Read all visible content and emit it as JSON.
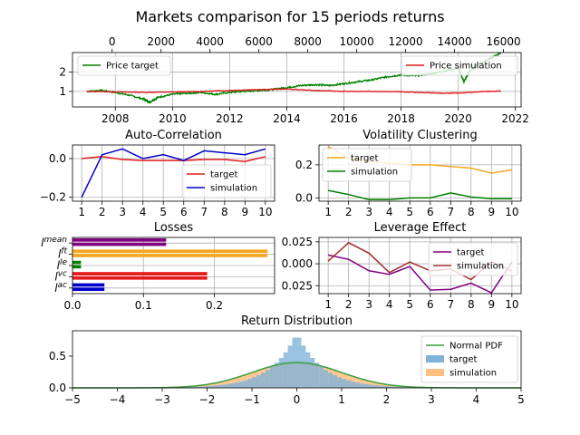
{
  "title": "Markets comparison for 15 periods returns",
  "colors": {
    "target_green": "#008000",
    "simulation_red": "#e41a1c",
    "simulation_blue": "#0000cc",
    "orange": "#f5a623",
    "purple": "#800080",
    "brown": "#a52a2a",
    "hist_target": "#7fb2d8",
    "hist_sim": "#ffbf80",
    "pdf_green": "#3a9e3a"
  },
  "chart_data": [
    {
      "id": "price",
      "type": "line",
      "title": "",
      "x_bottom_ticks": [
        "2008",
        "2010",
        "2012",
        "2014",
        "2016",
        "2018",
        "2020",
        "2022"
      ],
      "x_top_ticks": [
        "0",
        "2000",
        "4000",
        "6000",
        "8000",
        "10000",
        "12000",
        "14000",
        "16000"
      ],
      "y_ticks": [
        "1",
        "2"
      ],
      "xlim": [
        2006.5,
        2022.2
      ],
      "ylim": [
        0.2,
        3.0
      ],
      "legend_left": "Price target",
      "legend_right": "Price simulation",
      "series": [
        {
          "name": "Price target",
          "color": "#008000",
          "x": [
            2007.0,
            2007.5,
            2008.0,
            2008.5,
            2009.0,
            2009.2,
            2009.5,
            2010.0,
            2010.5,
            2011.0,
            2011.5,
            2012.0,
            2012.5,
            2013.0,
            2013.5,
            2014.0,
            2014.5,
            2015.0,
            2015.5,
            2016.0,
            2016.5,
            2017.0,
            2017.5,
            2018.0,
            2018.5,
            2019.0,
            2019.5,
            2020.0,
            2020.2,
            2020.4,
            2020.7,
            2021.0,
            2021.5
          ],
          "y": [
            1.0,
            1.05,
            0.95,
            0.8,
            0.6,
            0.45,
            0.7,
            0.85,
            0.9,
            0.95,
            0.85,
            0.95,
            1.0,
            1.05,
            1.1,
            1.2,
            1.3,
            1.35,
            1.3,
            1.4,
            1.5,
            1.6,
            1.75,
            1.85,
            1.8,
            1.9,
            2.05,
            2.2,
            1.5,
            2.05,
            2.4,
            2.6,
            3.0
          ]
        },
        {
          "name": "Price simulation",
          "color": "#e41a1c",
          "x": [
            2007.0,
            2008.0,
            2009.0,
            2010.0,
            2011.0,
            2012.0,
            2013.0,
            2014.0,
            2015.0,
            2016.0,
            2017.0,
            2018.0,
            2019.0,
            2019.5,
            2020.0,
            2021.0,
            2021.5
          ],
          "y": [
            1.0,
            0.98,
            0.95,
            0.97,
            1.0,
            1.05,
            1.1,
            1.12,
            1.05,
            1.0,
            1.0,
            0.98,
            0.93,
            0.9,
            0.92,
            1.0,
            1.02
          ]
        }
      ]
    },
    {
      "id": "autocorr",
      "type": "line",
      "title": "Auto-Correlation",
      "categories": [
        1,
        2,
        3,
        4,
        5,
        6,
        7,
        8,
        9,
        10
      ],
      "y_ticks": [
        "−0.2",
        "0.0"
      ],
      "ylim": [
        -0.22,
        0.07
      ],
      "series": [
        {
          "name": "target",
          "color": "#e41a1c",
          "values": [
            0.0,
            0.01,
            -0.005,
            -0.01,
            -0.01,
            -0.01,
            -0.005,
            -0.005,
            -0.015,
            0.01
          ]
        },
        {
          "name": "simulation",
          "color": "#0000cc",
          "values": [
            -0.2,
            0.02,
            0.05,
            0.0,
            0.02,
            -0.01,
            0.04,
            0.03,
            0.02,
            0.05
          ]
        }
      ]
    },
    {
      "id": "volatility",
      "type": "line",
      "title": "Volatility Clustering",
      "categories": [
        1,
        2,
        3,
        4,
        5,
        6,
        7,
        8,
        9,
        10
      ],
      "y_ticks": [
        "0.0",
        "0.2"
      ],
      "ylim": [
        -0.02,
        0.32
      ],
      "series": [
        {
          "name": "target",
          "color": "#f5a623",
          "values": [
            0.31,
            0.24,
            0.22,
            0.21,
            0.2,
            0.2,
            0.19,
            0.18,
            0.15,
            0.17
          ]
        },
        {
          "name": "simulation",
          "color": "#008000",
          "values": [
            0.045,
            0.02,
            -0.01,
            -0.01,
            0.0,
            0.0,
            0.03,
            0.005,
            -0.005,
            -0.005
          ]
        }
      ]
    },
    {
      "id": "losses",
      "type": "bar",
      "title": "Losses",
      "x_ticks": [
        "0.0",
        "0.1",
        "0.2"
      ],
      "xlim": [
        0,
        0.285
      ],
      "categories": [
        "L^mean",
        "L^ft",
        "L^le",
        "L^vc",
        "L^ac"
      ],
      "category_labels": [
        {
          "base": "l",
          "sup": "mean"
        },
        {
          "base": "l",
          "sup": "ft"
        },
        {
          "base": "l",
          "sup": "le"
        },
        {
          "base": "l",
          "sup": "vc"
        },
        {
          "base": "l",
          "sup": "ac"
        }
      ],
      "series": [
        {
          "name": "target",
          "values": [
            0.132,
            0.275,
            0.012,
            0.19,
            0.045
          ],
          "colors": [
            "#800080",
            "#f5a623",
            "#008000",
            "#e41a1c",
            "#0000cc"
          ]
        },
        {
          "name": "simulation",
          "values": [
            0.132,
            0.275,
            0.012,
            0.19,
            0.045
          ],
          "colors": [
            "#800080",
            "#f5a623",
            "#008000",
            "#e41a1c",
            "#0000cc"
          ]
        }
      ]
    },
    {
      "id": "leverage",
      "type": "line",
      "title": "Leverage Effect",
      "categories": [
        1,
        2,
        3,
        4,
        5,
        6,
        7,
        8,
        9,
        10
      ],
      "y_ticks": [
        "0.025",
        "0.000",
        "0.025"
      ],
      "ylim": [
        -0.034,
        0.03
      ],
      "series": [
        {
          "name": "target",
          "color": "#800080",
          "values": [
            0.01,
            0.005,
            -0.008,
            -0.012,
            -0.003,
            -0.03,
            -0.029,
            -0.022,
            -0.033,
            0.002
          ]
        },
        {
          "name": "simulation",
          "color": "#a52a2a",
          "values": [
            0.003,
            0.024,
            0.012,
            -0.01,
            0.002,
            -0.008,
            -0.006,
            -0.018,
            0.002,
            -0.008
          ]
        }
      ]
    },
    {
      "id": "distribution",
      "type": "bar",
      "title": "Return Distribution",
      "x_ticks": [
        "−5",
        "−4",
        "−3",
        "−2",
        "−1",
        "0",
        "1",
        "2",
        "3",
        "4",
        "5"
      ],
      "xlim": [
        -5,
        5
      ],
      "y_ticks": [
        "0.0",
        "0.5"
      ],
      "ylim": [
        0,
        0.9
      ],
      "legend": [
        "Normal PDF",
        "target",
        "simulation"
      ],
      "series": [
        {
          "name": "target",
          "color": "#7fb2d8",
          "kind": "laplace",
          "scale": 0.58
        },
        {
          "name": "simulation",
          "color": "#ffbf80",
          "kind": "normal",
          "sigma": 1.0
        },
        {
          "name": "Normal PDF",
          "color": "#3a9e3a",
          "kind": "normal_pdf",
          "sigma": 1.0
        }
      ]
    }
  ]
}
